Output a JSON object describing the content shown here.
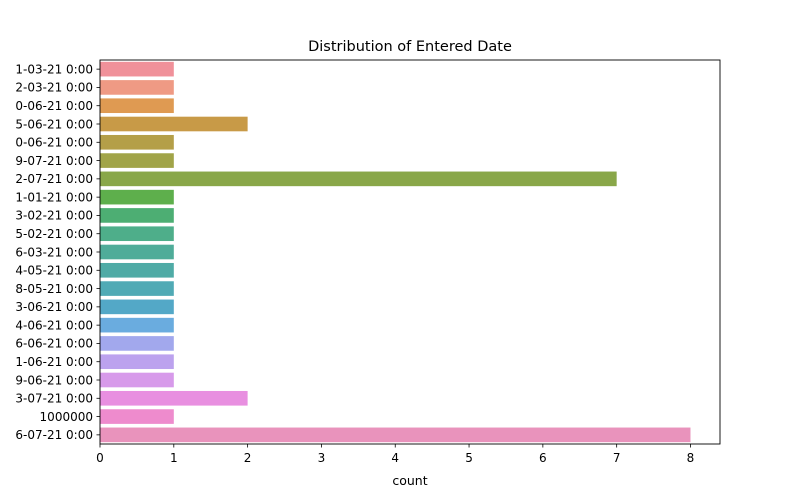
{
  "chart_data": {
    "type": "bar",
    "orientation": "horizontal",
    "title": "Distribution of Entered Date",
    "xlabel": "count",
    "ylabel": "",
    "xlim": [
      0,
      8.4
    ],
    "xticks": [
      "0",
      "1",
      "2",
      "3",
      "4",
      "5",
      "6",
      "7",
      "8"
    ],
    "grid": false,
    "categories": [
      "1-03-21 0:00",
      "2-03-21 0:00",
      "0-06-21 0:00",
      "5-06-21 0:00",
      "0-06-21 0:00",
      "9-07-21 0:00",
      "2-07-21 0:00",
      "1-01-21 0:00",
      "3-02-21 0:00",
      "5-02-21 0:00",
      "6-03-21 0:00",
      "4-05-21 0:00",
      "8-05-21 0:00",
      "3-06-21 0:00",
      "4-06-21 0:00",
      "6-06-21 0:00",
      "1-06-21 0:00",
      "9-06-21 0:00",
      "3-07-21 0:00",
      "1000000",
      "6-07-21 0:00"
    ],
    "values": [
      1,
      1,
      1,
      2,
      1,
      1,
      7,
      1,
      1,
      1,
      1,
      1,
      1,
      1,
      1,
      1,
      1,
      1,
      2,
      1,
      8
    ],
    "colors": [
      "#f0919a",
      "#ef9a84",
      "#df9a52",
      "#c89a47",
      "#b49f48",
      "#a1a448",
      "#89a749",
      "#5eaf4c",
      "#4dae73",
      "#4eae8a",
      "#4fac99",
      "#4faba6",
      "#50aab5",
      "#53a8c7",
      "#6aacdf",
      "#a2a8ed",
      "#bca2ee",
      "#d79aea",
      "#e88fe0",
      "#ee8bcd",
      "#e993bc"
    ]
  }
}
